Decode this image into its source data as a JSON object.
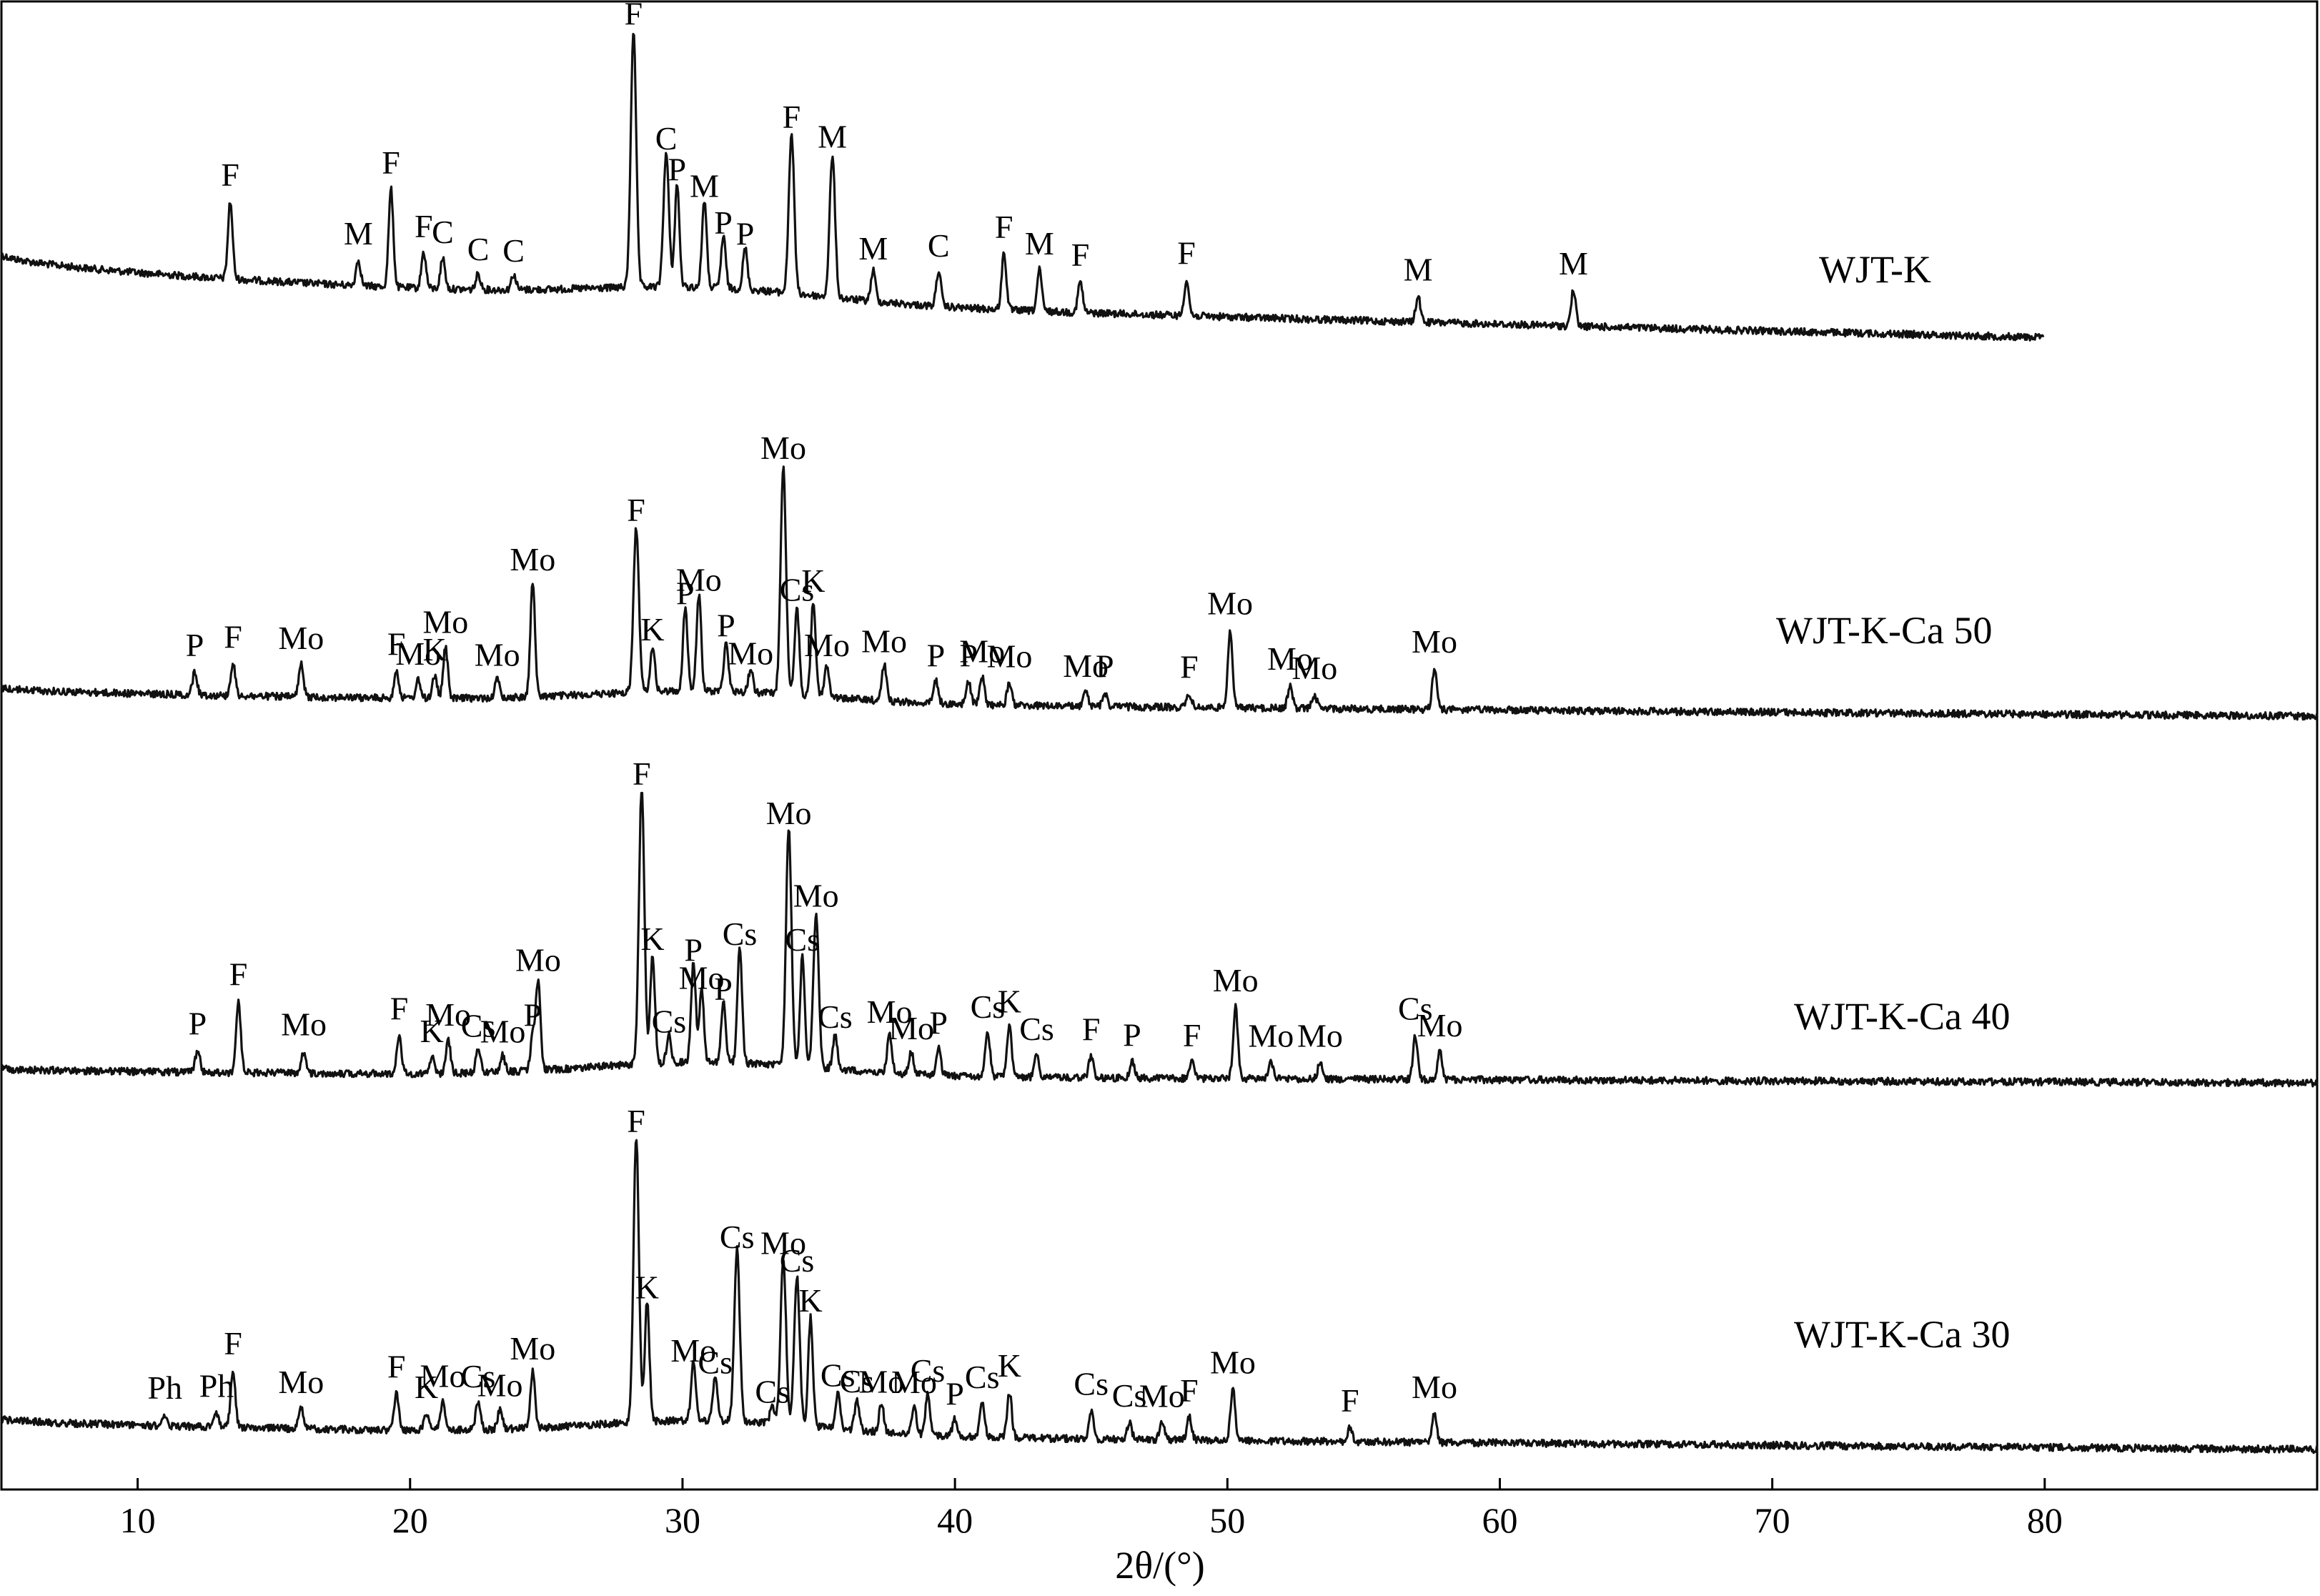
{
  "chart_data": {
    "type": "line",
    "title": "",
    "xlabel": "2θ/(°)",
    "ylabel": "",
    "xlim": [
      5,
      90
    ],
    "x_ticks": [
      10,
      20,
      30,
      40,
      50,
      60,
      70,
      80
    ],
    "series": [
      {
        "name": "WJT-K",
        "x_end": 80,
        "peaks": [
          {
            "x": 13.4,
            "h": 0.3,
            "label": "F"
          },
          {
            "x": 18.1,
            "h": 0.1,
            "label": "M"
          },
          {
            "x": 19.3,
            "h": 0.38,
            "label": "F"
          },
          {
            "x": 20.5,
            "h": 0.14,
            "label": "F"
          },
          {
            "x": 21.2,
            "h": 0.12,
            "label": "C"
          },
          {
            "x": 22.5,
            "h": 0.06,
            "label": "C"
          },
          {
            "x": 23.8,
            "h": 0.06,
            "label": "C"
          },
          {
            "x": 28.2,
            "h": 1.0,
            "label": "F"
          },
          {
            "x": 29.4,
            "h": 0.52,
            "label": "C"
          },
          {
            "x": 29.8,
            "h": 0.4,
            "label": "P"
          },
          {
            "x": 30.8,
            "h": 0.34,
            "label": "M"
          },
          {
            "x": 31.5,
            "h": 0.2,
            "label": "P"
          },
          {
            "x": 32.3,
            "h": 0.16,
            "label": "P"
          },
          {
            "x": 34.0,
            "h": 0.62,
            "label": "F"
          },
          {
            "x": 35.5,
            "h": 0.55,
            "label": "M"
          },
          {
            "x": 37.0,
            "h": 0.12,
            "label": "M"
          },
          {
            "x": 39.4,
            "h": 0.14,
            "label": "C"
          },
          {
            "x": 41.8,
            "h": 0.22,
            "label": "F"
          },
          {
            "x": 43.1,
            "h": 0.16,
            "label": "M"
          },
          {
            "x": 44.6,
            "h": 0.12,
            "label": "F"
          },
          {
            "x": 48.5,
            "h": 0.14,
            "label": "F"
          },
          {
            "x": 57.0,
            "h": 0.1,
            "label": "M"
          },
          {
            "x": 62.7,
            "h": 0.14,
            "label": "M"
          }
        ]
      },
      {
        "name": "WJT-K-Ca 50",
        "x_end": 90,
        "peaks": [
          {
            "x": 12.1,
            "h": 0.1,
            "label": "P"
          },
          {
            "x": 13.5,
            "h": 0.14,
            "label": "F"
          },
          {
            "x": 16.0,
            "h": 0.14,
            "label": "Mo"
          },
          {
            "x": 19.5,
            "h": 0.12,
            "label": "F"
          },
          {
            "x": 20.3,
            "h": 0.08,
            "label": "Mo"
          },
          {
            "x": 20.9,
            "h": 0.1,
            "label": "K"
          },
          {
            "x": 21.3,
            "h": 0.22,
            "label": "Mo"
          },
          {
            "x": 23.2,
            "h": 0.08,
            "label": "Mo"
          },
          {
            "x": 24.5,
            "h": 0.5,
            "label": "Mo"
          },
          {
            "x": 28.3,
            "h": 0.72,
            "label": "F"
          },
          {
            "x": 28.9,
            "h": 0.2,
            "label": "K"
          },
          {
            "x": 30.1,
            "h": 0.36,
            "label": "P"
          },
          {
            "x": 30.6,
            "h": 0.42,
            "label": "Mo"
          },
          {
            "x": 31.6,
            "h": 0.22,
            "label": "P"
          },
          {
            "x": 32.5,
            "h": 0.1,
            "label": "Mo"
          },
          {
            "x": 33.7,
            "h": 1.0,
            "label": "Mo"
          },
          {
            "x": 34.2,
            "h": 0.38,
            "label": "Cs"
          },
          {
            "x": 34.8,
            "h": 0.42,
            "label": "K"
          },
          {
            "x": 35.3,
            "h": 0.14,
            "label": "Mo"
          },
          {
            "x": 37.4,
            "h": 0.16,
            "label": "Mo"
          },
          {
            "x": 39.3,
            "h": 0.1,
            "label": "P"
          },
          {
            "x": 40.5,
            "h": 0.1,
            "label": "P"
          },
          {
            "x": 41.0,
            "h": 0.12,
            "label": "Mo"
          },
          {
            "x": 42.0,
            "h": 0.1,
            "label": "Mo"
          },
          {
            "x": 44.8,
            "h": 0.06,
            "label": "Mo"
          },
          {
            "x": 45.5,
            "h": 0.06,
            "label": "P"
          },
          {
            "x": 48.6,
            "h": 0.06,
            "label": "F"
          },
          {
            "x": 50.1,
            "h": 0.34,
            "label": "Mo"
          },
          {
            "x": 52.3,
            "h": 0.1,
            "label": "Mo"
          },
          {
            "x": 53.2,
            "h": 0.06,
            "label": "Mo"
          },
          {
            "x": 57.6,
            "h": 0.18,
            "label": "Mo"
          }
        ]
      },
      {
        "name": "WJT-K-Ca  40",
        "x_end": 90,
        "peaks": [
          {
            "x": 12.2,
            "h": 0.08,
            "label": "P"
          },
          {
            "x": 13.7,
            "h": 0.26,
            "label": "F"
          },
          {
            "x": 16.1,
            "h": 0.08,
            "label": "Mo"
          },
          {
            "x": 19.6,
            "h": 0.14,
            "label": "F"
          },
          {
            "x": 20.8,
            "h": 0.06,
            "label": "K"
          },
          {
            "x": 21.4,
            "h": 0.12,
            "label": "Mo"
          },
          {
            "x": 22.5,
            "h": 0.08,
            "label": "Cs"
          },
          {
            "x": 23.4,
            "h": 0.06,
            "label": "Mo"
          },
          {
            "x": 24.5,
            "h": 0.12,
            "label": "P"
          },
          {
            "x": 24.7,
            "h": 0.32,
            "label": "Mo"
          },
          {
            "x": 28.5,
            "h": 1.0,
            "label": "F"
          },
          {
            "x": 28.9,
            "h": 0.4,
            "label": "K"
          },
          {
            "x": 29.5,
            "h": 0.1,
            "label": "Cs"
          },
          {
            "x": 30.4,
            "h": 0.36,
            "label": "P"
          },
          {
            "x": 30.7,
            "h": 0.26,
            "label": "Mo"
          },
          {
            "x": 31.5,
            "h": 0.22,
            "label": "P"
          },
          {
            "x": 32.1,
            "h": 0.42,
            "label": "Cs"
          },
          {
            "x": 33.9,
            "h": 0.86,
            "label": "Mo"
          },
          {
            "x": 34.4,
            "h": 0.4,
            "label": "Cs"
          },
          {
            "x": 34.9,
            "h": 0.56,
            "label": "Mo"
          },
          {
            "x": 35.6,
            "h": 0.12,
            "label": "Cs"
          },
          {
            "x": 37.6,
            "h": 0.14,
            "label": "Mo"
          },
          {
            "x": 38.4,
            "h": 0.08,
            "label": "Mo"
          },
          {
            "x": 39.4,
            "h": 0.1,
            "label": "P"
          },
          {
            "x": 41.2,
            "h": 0.16,
            "label": "Cs"
          },
          {
            "x": 42.0,
            "h": 0.18,
            "label": "K"
          },
          {
            "x": 43.0,
            "h": 0.08,
            "label": "Cs"
          },
          {
            "x": 45.0,
            "h": 0.08,
            "label": "F"
          },
          {
            "x": 46.5,
            "h": 0.06,
            "label": "P"
          },
          {
            "x": 48.7,
            "h": 0.06,
            "label": "F"
          },
          {
            "x": 50.3,
            "h": 0.26,
            "label": "Mo"
          },
          {
            "x": 51.6,
            "h": 0.06,
            "label": "Mo"
          },
          {
            "x": 53.4,
            "h": 0.06,
            "label": "Mo"
          },
          {
            "x": 56.9,
            "h": 0.16,
            "label": "Cs"
          },
          {
            "x": 57.8,
            "h": 0.1,
            "label": "Mo"
          }
        ]
      },
      {
        "name": "WJT-K-Ca  30",
        "x_end": 90,
        "peaks": [
          {
            "x": 11.0,
            "h": 0.04,
            "label": "Ph"
          },
          {
            "x": 12.9,
            "h": 0.05,
            "label": "Ph"
          },
          {
            "x": 13.5,
            "h": 0.2,
            "label": "F"
          },
          {
            "x": 16.0,
            "h": 0.07,
            "label": "Mo"
          },
          {
            "x": 19.5,
            "h": 0.13,
            "label": "F"
          },
          {
            "x": 20.6,
            "h": 0.06,
            "label": "K"
          },
          {
            "x": 21.2,
            "h": 0.1,
            "label": "Mo"
          },
          {
            "x": 22.5,
            "h": 0.1,
            "label": "Cs"
          },
          {
            "x": 23.3,
            "h": 0.07,
            "label": "Mo"
          },
          {
            "x": 24.5,
            "h": 0.2,
            "label": "Mo"
          },
          {
            "x": 28.3,
            "h": 1.0,
            "label": "F"
          },
          {
            "x": 28.7,
            "h": 0.42,
            "label": "K"
          },
          {
            "x": 30.4,
            "h": 0.2,
            "label": "Mo"
          },
          {
            "x": 31.2,
            "h": 0.16,
            "label": "Cs"
          },
          {
            "x": 32.0,
            "h": 0.6,
            "label": "Cs"
          },
          {
            "x": 33.3,
            "h": 0.06,
            "label": "Cs"
          },
          {
            "x": 33.7,
            "h": 0.58,
            "label": "Mo"
          },
          {
            "x": 34.2,
            "h": 0.52,
            "label": "Cs"
          },
          {
            "x": 34.7,
            "h": 0.38,
            "label": "K"
          },
          {
            "x": 35.7,
            "h": 0.12,
            "label": "Cs"
          },
          {
            "x": 36.4,
            "h": 0.1,
            "label": "Cs"
          },
          {
            "x": 37.3,
            "h": 0.1,
            "label": "Mo"
          },
          {
            "x": 38.5,
            "h": 0.1,
            "label": "Mo"
          },
          {
            "x": 39.0,
            "h": 0.14,
            "label": "Cs"
          },
          {
            "x": 40.0,
            "h": 0.06,
            "label": "P"
          },
          {
            "x": 41.0,
            "h": 0.12,
            "label": "Cs"
          },
          {
            "x": 42.0,
            "h": 0.16,
            "label": "K"
          },
          {
            "x": 45.0,
            "h": 0.1,
            "label": "Cs"
          },
          {
            "x": 46.4,
            "h": 0.06,
            "label": "Cs"
          },
          {
            "x": 47.6,
            "h": 0.06,
            "label": "Mo"
          },
          {
            "x": 48.6,
            "h": 0.08,
            "label": "F"
          },
          {
            "x": 50.2,
            "h": 0.18,
            "label": "Mo"
          },
          {
            "x": 54.5,
            "h": 0.05,
            "label": "F"
          },
          {
            "x": 57.6,
            "h": 0.1,
            "label": "Mo"
          }
        ]
      }
    ]
  }
}
